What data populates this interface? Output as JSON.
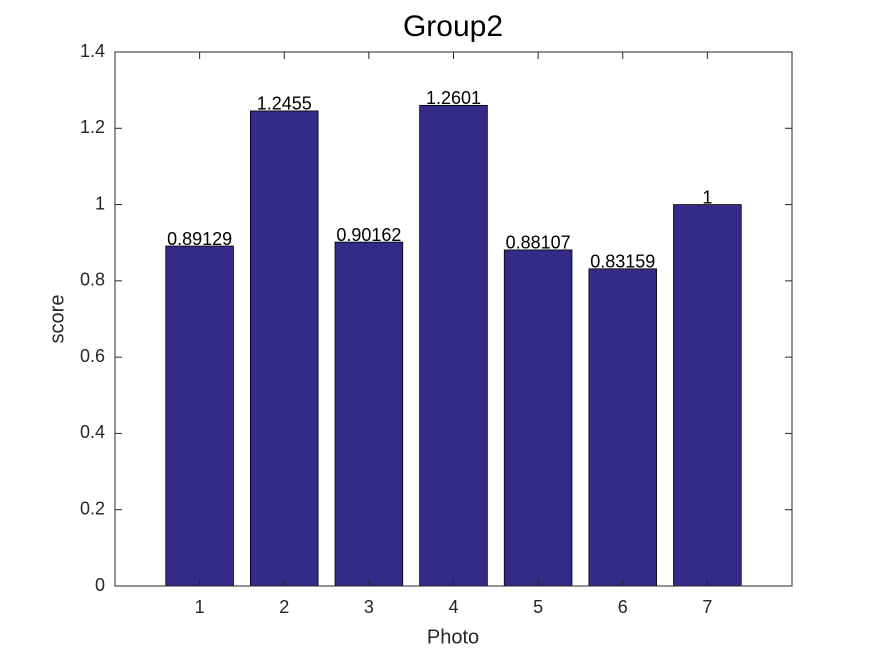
{
  "chart_data": {
    "type": "bar",
    "title": "Group2",
    "xlabel": "Photo",
    "ylabel": "score",
    "x": [
      1,
      2,
      3,
      4,
      5,
      6,
      7
    ],
    "values": [
      0.89129,
      1.2455,
      0.90162,
      1.2601,
      0.88107,
      0.83159,
      1
    ],
    "color": "#352a87",
    "xlim": [
      0,
      8
    ],
    "xticks": [
      1,
      2,
      3,
      4,
      5,
      6,
      7
    ],
    "ylim": [
      0,
      1.4
    ],
    "yticks": [
      0,
      0.2,
      0.4,
      0.6,
      0.8,
      1,
      1.2,
      1.4
    ],
    "bar_width": 0.8
  }
}
